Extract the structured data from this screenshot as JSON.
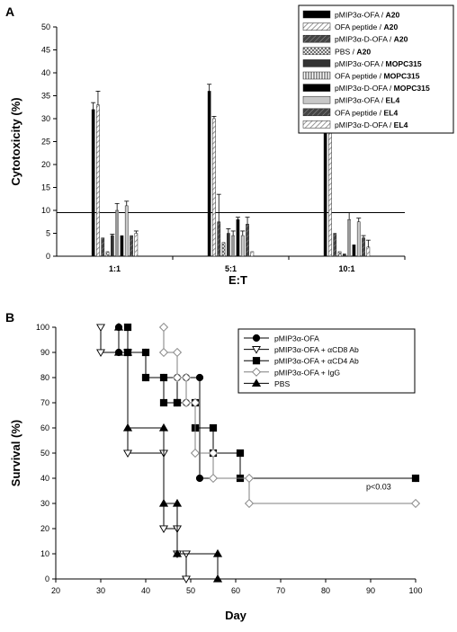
{
  "panel_a_label": "A",
  "panel_b_label": "B",
  "colors": {
    "black": "#000000",
    "dark": "#333333",
    "gray": "#7f7f7f",
    "light": "#c8c8c8",
    "white": "#ffffff"
  },
  "chart_data": [
    {
      "type": "bar",
      "categories": [
        "1:1",
        "5:1",
        "10:1"
      ],
      "xlabel": "E:T",
      "ylabel": "Cytotoxicity (%)",
      "ylim": [
        0,
        50
      ],
      "yticks": [
        "0",
        "5",
        "10",
        "15",
        "20",
        "25",
        "30",
        "35",
        "40",
        "45",
        "50"
      ],
      "reference_line": 9.5,
      "legend_position": "top-right",
      "series": [
        {
          "name": "pMIP3α-OFA / ",
          "bold": "A20",
          "values": [
            32,
            36,
            36
          ],
          "errors": [
            1.5,
            1.5,
            4
          ],
          "style": "black"
        },
        {
          "name": "OFA peptide / ",
          "bold": "A20",
          "values": [
            33,
            30,
            46.5
          ],
          "errors": [
            3,
            0.5,
            0.3
          ],
          "style": "hatch-light"
        },
        {
          "name": "pMIP3α-D-OFA / ",
          "bold": "A20",
          "values": [
            4,
            7.5,
            5
          ],
          "errors": [
            0,
            6,
            0
          ],
          "style": "dark-hatch"
        },
        {
          "name": "PBS / ",
          "bold": "A20",
          "values": [
            1,
            3,
            1
          ],
          "errors": [
            0,
            0,
            0
          ],
          "style": "cross"
        },
        {
          "name": "pMIP3α-OFA / ",
          "bold": "MOPC315",
          "values": [
            4.5,
            5,
            0.5
          ],
          "errors": [
            0.3,
            1,
            0
          ],
          "style": "dark"
        },
        {
          "name": "OFA peptide / ",
          "bold": "MOPC315",
          "values": [
            10,
            4.5,
            8
          ],
          "errors": [
            1.5,
            1,
            1.5
          ],
          "style": "vertical"
        },
        {
          "name": "pMIP3α-D-OFA / ",
          "bold": "MOPC315",
          "values": [
            4.5,
            8,
            2.5
          ],
          "errors": [
            0,
            0.5,
            0
          ],
          "style": "black"
        },
        {
          "name": "pMIP3α-OFA / ",
          "bold": "EL4",
          "values": [
            11,
            4.5,
            7.5
          ],
          "errors": [
            1,
            1,
            0.8
          ],
          "style": "light"
        },
        {
          "name": "OFA peptide / ",
          "bold": "EL4",
          "values": [
            4.5,
            7,
            4
          ],
          "errors": [
            0,
            1.5,
            0.5
          ],
          "style": "dark-hatch"
        },
        {
          "name": "pMIP3α-D-OFA / ",
          "bold": "EL4",
          "values": [
            5,
            1,
            2
          ],
          "errors": [
            0.5,
            0,
            1.5
          ],
          "style": "hatch-light"
        }
      ]
    },
    {
      "type": "line",
      "xlabel": "Day",
      "ylabel": "Survival (%)",
      "xlim": [
        20,
        100
      ],
      "ylim": [
        0,
        100
      ],
      "xticks": [
        "20",
        "30",
        "40",
        "50",
        "60",
        "70",
        "80",
        "90",
        "100"
      ],
      "yticks": [
        "0",
        "10",
        "20",
        "30",
        "40",
        "50",
        "60",
        "70",
        "80",
        "90",
        "100"
      ],
      "annotation": "p<0.03",
      "legend_position": "top-right",
      "series": [
        {
          "name": "pMIP3α-OFA",
          "marker": "circle-filled",
          "points": [
            [
              34,
              100
            ],
            [
              34,
              90
            ],
            [
              40,
              90
            ],
            [
              40,
              80
            ],
            [
              44,
              80
            ],
            [
              47,
              80
            ],
            [
              47,
              70
            ],
            [
              49,
              70
            ],
            [
              49,
              80
            ],
            [
              52,
              80
            ],
            [
              52,
              40
            ],
            [
              100,
              40
            ]
          ]
        },
        {
          "name": "pMIP3α-OFA + αCD8 Ab",
          "marker": "triangle-down-open",
          "points": [
            [
              30,
              100
            ],
            [
              30,
              90
            ],
            [
              36,
              90
            ],
            [
              36,
              50
            ],
            [
              44,
              50
            ],
            [
              44,
              20
            ],
            [
              47,
              20
            ],
            [
              47,
              10
            ],
            [
              49,
              10
            ],
            [
              49,
              0
            ]
          ]
        },
        {
          "name": "pMIP3α-OFA + αCD4 Ab",
          "marker": "square-filled",
          "points": [
            [
              36,
              100
            ],
            [
              36,
              90
            ],
            [
              40,
              90
            ],
            [
              40,
              80
            ],
            [
              44,
              80
            ],
            [
              44,
              70
            ],
            [
              47,
              70
            ],
            [
              47,
              70
            ],
            [
              51,
              70
            ],
            [
              51,
              60
            ],
            [
              55,
              60
            ],
            [
              55,
              50
            ],
            [
              61,
              50
            ],
            [
              61,
              40
            ],
            [
              100,
              40
            ]
          ]
        },
        {
          "name": "pMIP3α-OFA + IgG",
          "marker": "diamond-open",
          "points": [
            [
              44,
              100
            ],
            [
              44,
              90
            ],
            [
              47,
              90
            ],
            [
              47,
              80
            ],
            [
              49,
              80
            ],
            [
              49,
              70
            ],
            [
              51,
              70
            ],
            [
              51,
              50
            ],
            [
              55,
              50
            ],
            [
              55,
              40
            ],
            [
              63,
              40
            ],
            [
              63,
              30
            ],
            [
              100,
              30
            ]
          ]
        },
        {
          "name": "PBS",
          "marker": "triangle-up-filled",
          "points": [
            [
              34,
              100
            ],
            [
              34,
              90
            ],
            [
              36,
              90
            ],
            [
              36,
              60
            ],
            [
              44,
              60
            ],
            [
              44,
              30
            ],
            [
              47,
              30
            ],
            [
              47,
              10
            ],
            [
              56,
              10
            ],
            [
              56,
              0
            ]
          ]
        }
      ]
    }
  ]
}
